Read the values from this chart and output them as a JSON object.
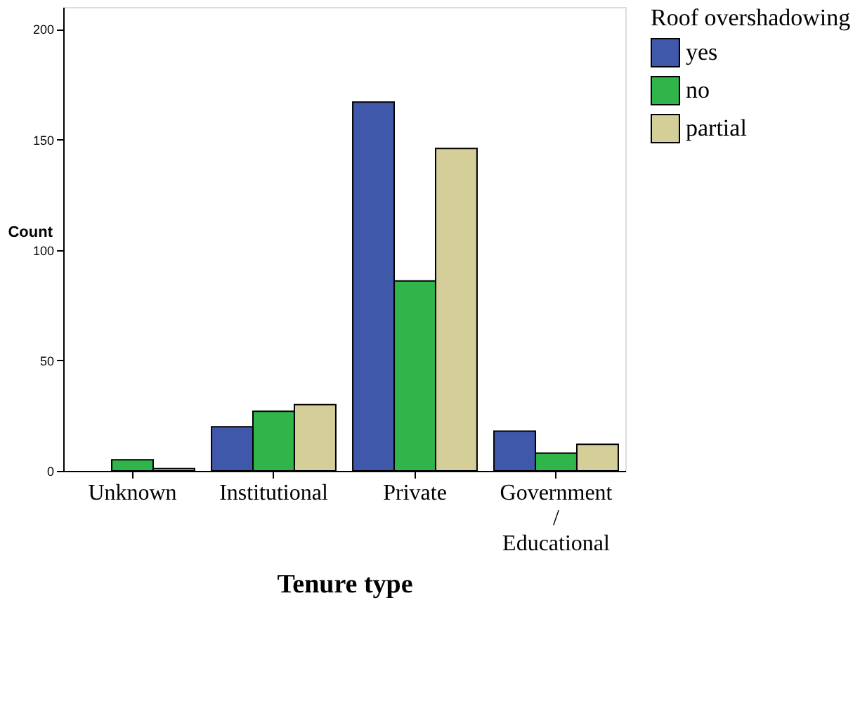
{
  "chart_data": {
    "type": "bar",
    "xlabel": "Tenure type",
    "ylabel": "Count",
    "legend_title": "Roof overshadowing",
    "categories": [
      "Unknown",
      "Institutional",
      "Private",
      "Government / Educational"
    ],
    "series": [
      {
        "name": "yes",
        "color": "#3f58aa",
        "values": [
          null,
          20,
          167,
          18
        ]
      },
      {
        "name": "no",
        "color": "#2fb54a",
        "values": [
          5,
          27,
          86,
          8
        ]
      },
      {
        "name": "partial",
        "color": "#d4cf98",
        "values": [
          1,
          30,
          146,
          12
        ]
      }
    ],
    "ylim": [
      0,
      210
    ],
    "yticks": [
      0,
      50,
      100,
      150,
      200
    ],
    "grid": false,
    "legend": "right"
  }
}
